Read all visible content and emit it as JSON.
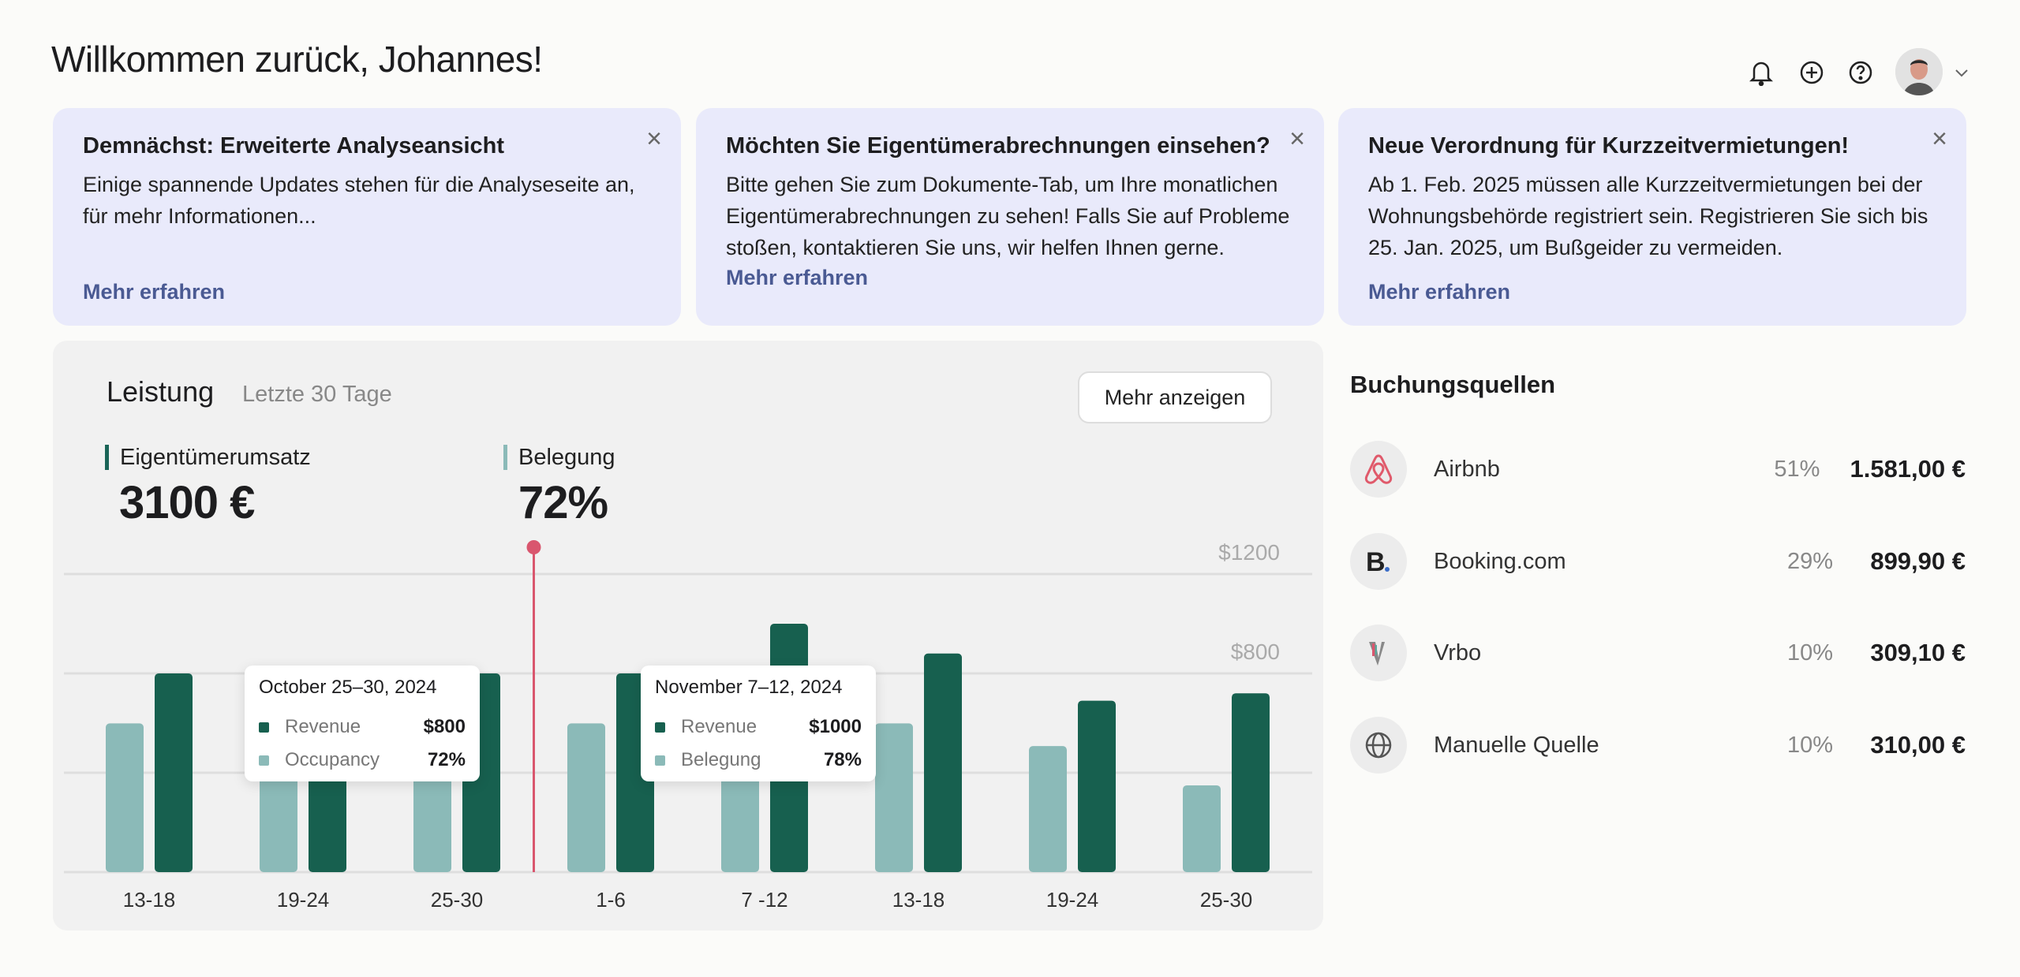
{
  "header": {
    "title": "Willkommen zurück, Johannes!",
    "icons": [
      "bell-icon",
      "plus-circle-icon",
      "help-icon",
      "avatar",
      "chevron-down-icon"
    ]
  },
  "cards": [
    {
      "title": "Demnächst: Erweiterte Analyseansicht",
      "body": "Einige spannende Updates stehen für die Analyseseite an, für mehr Informationen...",
      "link": "Mehr erfahren",
      "close": "×"
    },
    {
      "title": "Möchten Sie Eigentümerabrechnungen einsehen?",
      "body": "Bitte gehen Sie zum Dokumente-Tab, um Ihre monatlichen Eigentümerabrechnungen zu sehen! Falls Sie auf Probleme stoßen, kontaktieren Sie uns, wir helfen Ihnen gerne.",
      "link": "Mehr erfahren",
      "close": "×"
    },
    {
      "title": "Neue Verordnung für Kurzzeitvermietungen!",
      "body": "Ab 1. Feb. 2025 müssen alle Kurzzeitvermietungen bei der Wohnungsbehörde registriert sein. Registrieren Sie sich bis 25. Jan. 2025, um Bußgeider zu vermeiden.",
      "link": "Mehr erfahren",
      "close": "×"
    }
  ],
  "performance": {
    "title": "Leistung",
    "subtitle": "Letzte 30 Tage",
    "more_button": "Mehr anzeigen",
    "kpis": [
      {
        "label": "Eigentümerumsatz",
        "value": "3100 €"
      },
      {
        "label": "Belegung",
        "value": "72%"
      }
    ],
    "tooltips": [
      {
        "title": "October 25–30, 2024",
        "rows": [
          {
            "name": "Revenue",
            "value": "$800"
          },
          {
            "name": "Occupancy",
            "value": "72%"
          }
        ]
      },
      {
        "title": "November 7–12, 2024",
        "rows": [
          {
            "name": "Revenue",
            "value": "$1000"
          },
          {
            "name": "Belegung",
            "value": "78%"
          }
        ]
      }
    ]
  },
  "chart_data": {
    "type": "bar",
    "categories": [
      "13-18",
      "19-24",
      "25-30",
      "1-6",
      "7 -12",
      "13-18",
      "19-24",
      "25-30"
    ],
    "series": [
      {
        "name": "Occupancy",
        "unit": "%",
        "color": "#8bbab8",
        "values": [
          72,
          72,
          72,
          72,
          78,
          72,
          61,
          42
        ]
      },
      {
        "name": "Revenue",
        "unit": "$",
        "color": "#17604f",
        "values": [
          800,
          800,
          800,
          800,
          1000,
          880,
          690,
          720
        ]
      }
    ],
    "ylim": [
      0,
      1200
    ],
    "yticks": [
      {
        "value": 1200,
        "label": "$1200"
      },
      {
        "value": 800,
        "label": "$800"
      }
    ],
    "marker_after_category": 2,
    "marker_color": "#d9566e",
    "grid": true
  },
  "sources": {
    "title": "Buchungsquellen",
    "items": [
      {
        "name": "Airbnb",
        "percent": "51%",
        "amount": "1.581,00 €",
        "icon": "airbnb-icon"
      },
      {
        "name": "Booking.com",
        "percent": "29%",
        "amount": "899,90 €",
        "icon": "booking-icon"
      },
      {
        "name": "Vrbo",
        "percent": "10%",
        "amount": "309,10 €",
        "icon": "vrbo-icon"
      },
      {
        "name": "Manuelle Quelle",
        "percent": "10%",
        "amount": "310,00 €",
        "icon": "globe-icon"
      }
    ]
  }
}
